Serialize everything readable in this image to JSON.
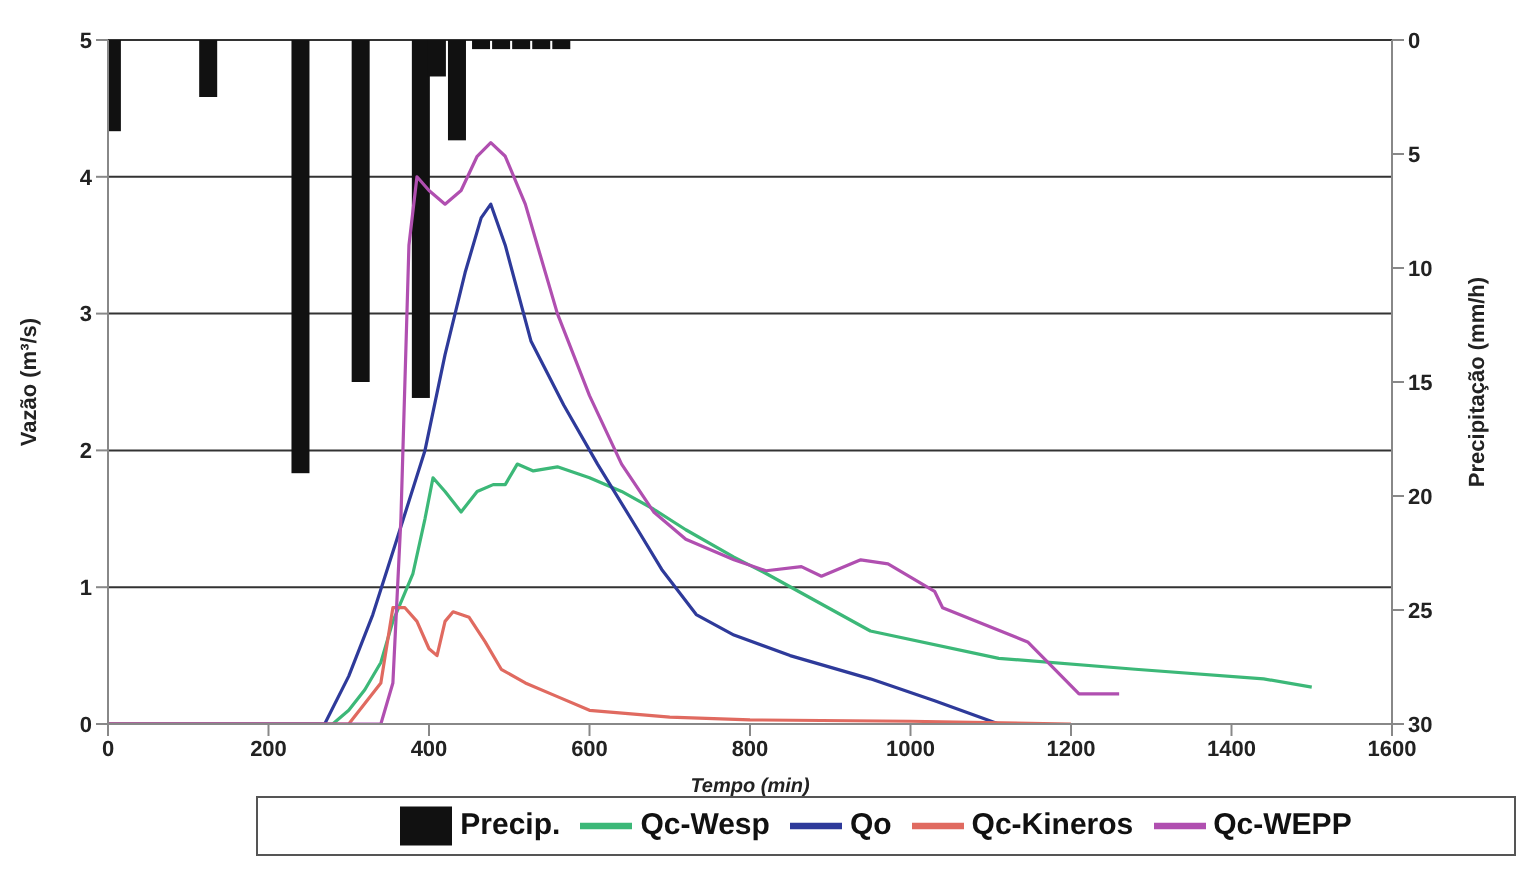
{
  "chart_data": {
    "type": "line",
    "xlabel": "Tempo (min)",
    "ylabel": "Vazão (m³/s)",
    "y2label": "Precipitação (mm/h)",
    "xlim": [
      0,
      1600
    ],
    "xticks": [
      0,
      200,
      400,
      600,
      800,
      1000,
      1200,
      1400,
      1600
    ],
    "ylim": [
      0,
      5
    ],
    "yticks": [
      0,
      1,
      2,
      3,
      4,
      5
    ],
    "y2lim": [
      30,
      0
    ],
    "y2ticks": [
      0,
      5,
      10,
      15,
      20,
      25,
      30
    ],
    "grid": "y",
    "legend": "bottom",
    "marker": "none",
    "line_style": "solid",
    "series": [
      {
        "name": "Precip.",
        "type": "bar",
        "axis": "y2",
        "color": "#111111",
        "x": [
          5,
          125,
          240,
          315,
          390,
          410,
          435,
          465,
          490,
          515,
          540,
          565
        ],
        "values": [
          4,
          2.5,
          19,
          15,
          15.7,
          1.6,
          4.4,
          0.4,
          0.4,
          0.4,
          0.4,
          0.4
        ]
      },
      {
        "name": "Qc-Wesp",
        "color": "#3cb878",
        "x": [
          0,
          280,
          300,
          320,
          340,
          355,
          380,
          395,
          405,
          420,
          440,
          460,
          480,
          495,
          510,
          530,
          560,
          600,
          640,
          680,
          720,
          780,
          820,
          950,
          1110,
          1280,
          1440,
          1500
        ],
        "values": [
          0,
          0,
          0.1,
          0.25,
          0.45,
          0.75,
          1.1,
          1.5,
          1.8,
          1.7,
          1.55,
          1.7,
          1.75,
          1.75,
          1.9,
          1.85,
          1.88,
          1.8,
          1.7,
          1.57,
          1.42,
          1.22,
          1.1,
          0.68,
          0.48,
          0.4,
          0.33,
          0.27
        ]
      },
      {
        "name": "Qo",
        "color": "#2e3a9a",
        "x": [
          0,
          270,
          300,
          330,
          360,
          395,
          420,
          445,
          465,
          477,
          495,
          527,
          568,
          610,
          658,
          690,
          733,
          780,
          850,
          950,
          1030,
          1110
        ],
        "values": [
          0,
          0,
          0.35,
          0.8,
          1.35,
          2.0,
          2.7,
          3.3,
          3.7,
          3.8,
          3.5,
          2.8,
          2.33,
          1.9,
          1.44,
          1.13,
          0.8,
          0.65,
          0.5,
          0.33,
          0.17,
          0
        ]
      },
      {
        "name": "Qc-Kineros",
        "color": "#e06a60",
        "x": [
          0,
          300,
          320,
          340,
          355,
          370,
          385,
          400,
          410,
          420,
          430,
          450,
          470,
          490,
          520,
          560,
          600,
          700,
          800,
          1000,
          1200
        ],
        "values": [
          0,
          0,
          0.15,
          0.3,
          0.85,
          0.85,
          0.75,
          0.55,
          0.5,
          0.75,
          0.82,
          0.78,
          0.6,
          0.4,
          0.3,
          0.2,
          0.1,
          0.05,
          0.03,
          0.02,
          0
        ]
      },
      {
        "name": "Qc-WEPP",
        "color": "#b04fb0",
        "x": [
          0,
          340,
          355,
          365,
          375,
          385,
          400,
          420,
          440,
          460,
          477,
          495,
          520,
          560,
          600,
          640,
          680,
          720,
          780,
          820,
          864,
          889,
          938,
          972,
          1030,
          1040,
          1146,
          1210,
          1260
        ],
        "values": [
          0,
          0,
          0.3,
          1.5,
          3.5,
          4.0,
          3.9,
          3.8,
          3.9,
          4.15,
          4.25,
          4.15,
          3.8,
          3.0,
          2.4,
          1.9,
          1.55,
          1.35,
          1.2,
          1.12,
          1.15,
          1.08,
          1.2,
          1.17,
          0.97,
          0.85,
          0.6,
          0.22,
          0.22
        ]
      }
    ]
  }
}
